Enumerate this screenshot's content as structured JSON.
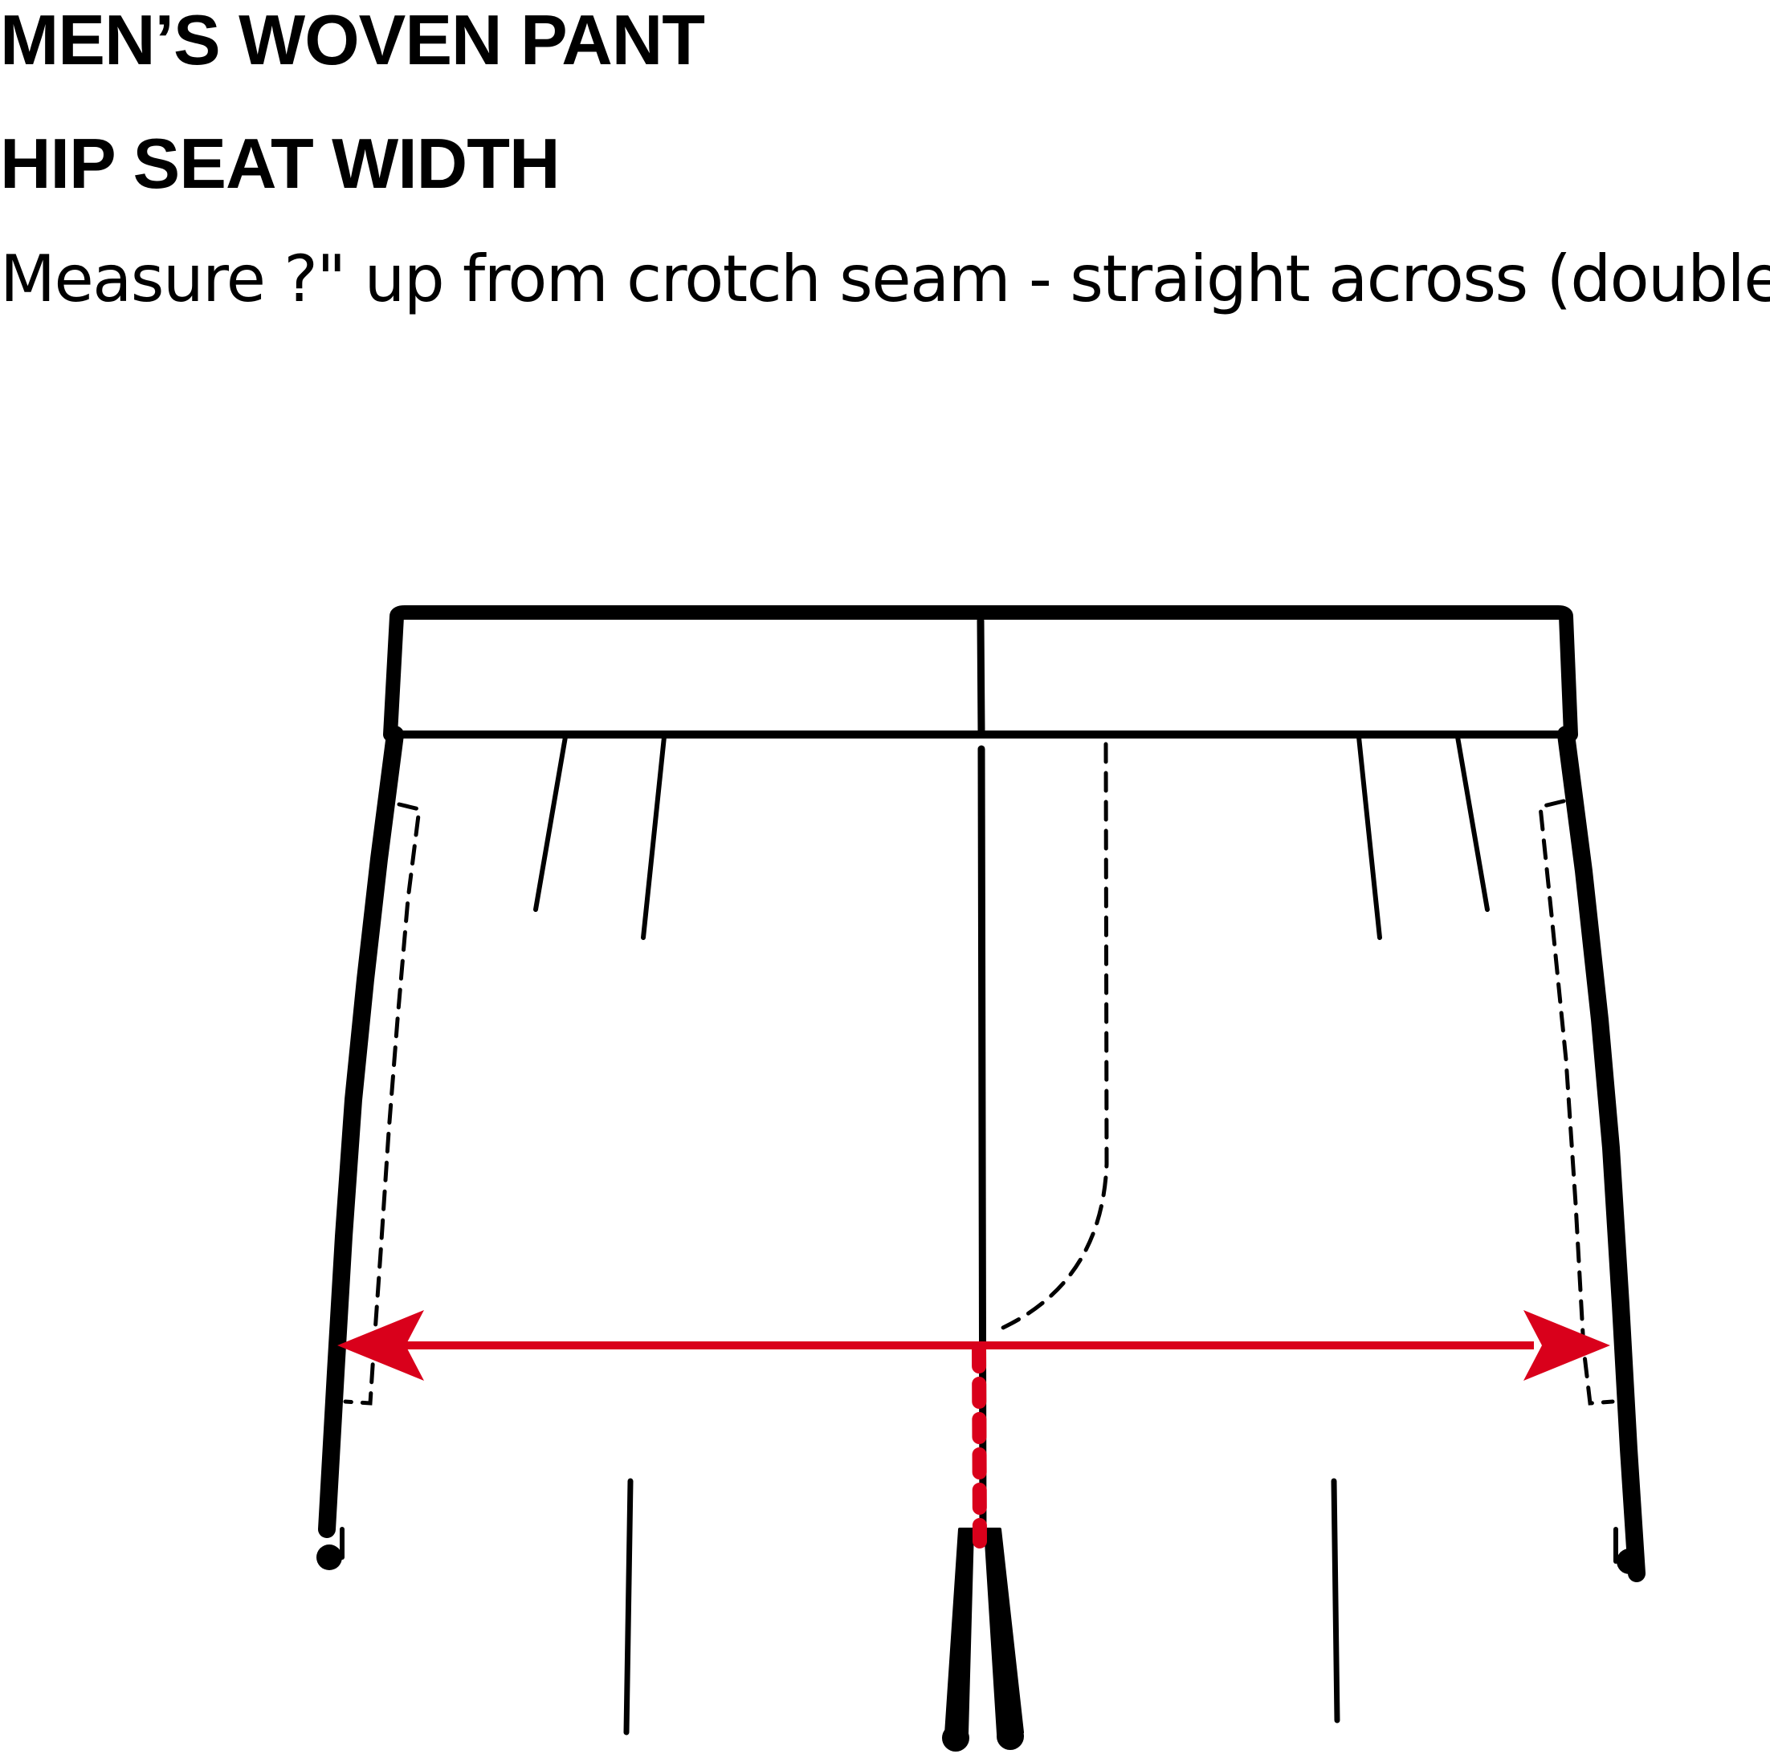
{
  "header": {
    "title": "MEN’S WOVEN PANT",
    "subtitle": "HIP SEAT WIDTH",
    "instruction": "Measure ?\" up from crotch seam - straight across (double)."
  },
  "diagram": {
    "garment_color": "#000000",
    "measure_color": "#d9001b",
    "background": "#ffffff"
  }
}
